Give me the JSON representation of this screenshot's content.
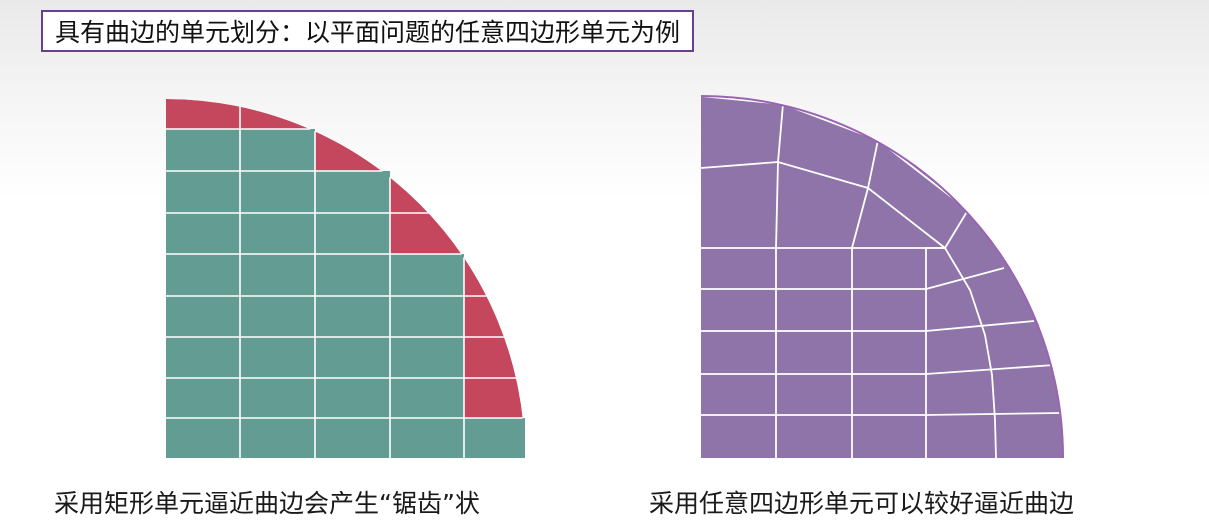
{
  "slide": {
    "title": "具有曲边的单元划分：以平面问题的任意四边形单元为例",
    "left_caption": "采用矩形单元逼近曲边会产生“锯齿”状",
    "right_caption": "采用任意四边形单元可以较好逼近曲边"
  },
  "colors": {
    "rect_element": "#629c92",
    "sawtooth_fill": "#c4475e",
    "quad_element": "#8e74a8",
    "quad_edge": "#9b63b3",
    "title_border": "#6a3f8c",
    "grid_line": "#ffffff"
  }
}
